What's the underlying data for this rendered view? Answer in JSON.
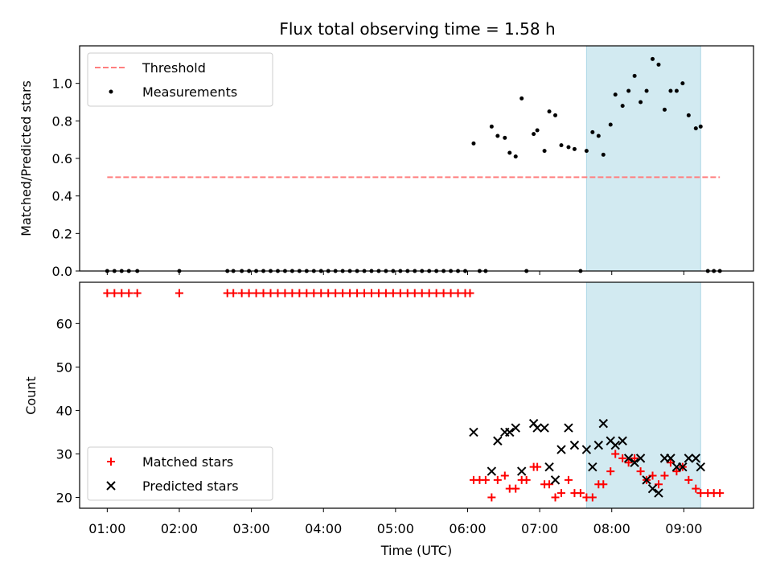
{
  "chart_data": [
    {
      "type": "scatter",
      "title": "Flux total observing time = 1.58 h",
      "ylabel": "Matched/Predicted stars",
      "xlabel": "",
      "xlim": [
        "00:37",
        "09:58"
      ],
      "ylim": [
        0,
        1.2
      ],
      "yticks": [
        "0.0",
        "0.2",
        "0.4",
        "0.6",
        "0.8",
        "1.0"
      ],
      "xticks": [
        "01:00",
        "02:00",
        "03:00",
        "04:00",
        "05:00",
        "06:00",
        "07:00",
        "08:00",
        "09:00"
      ],
      "grid": false,
      "legend_position": "upper left",
      "highlight_span": {
        "x_start": "07:39",
        "x_end": "09:14",
        "color": "#add8e6"
      },
      "series": [
        {
          "name": "Threshold",
          "style": "dashed-line",
          "color": "#ff7f7f",
          "points": [
            [
              "01:00",
              0.5
            ],
            [
              "09:30",
              0.5
            ]
          ]
        },
        {
          "name": "Measurements",
          "style": "dot",
          "color": "#000000",
          "points": [
            [
              "01:00",
              0
            ],
            [
              "01:06",
              0
            ],
            [
              "01:12",
              0
            ],
            [
              "01:18",
              0
            ],
            [
              "01:25",
              0
            ],
            [
              "02:00",
              0
            ],
            [
              "02:40",
              0
            ],
            [
              "02:45",
              0
            ],
            [
              "02:52",
              0
            ],
            [
              "02:58",
              0
            ],
            [
              "03:04",
              0
            ],
            [
              "03:10",
              0
            ],
            [
              "03:16",
              0
            ],
            [
              "03:22",
              0
            ],
            [
              "03:28",
              0
            ],
            [
              "03:34",
              0
            ],
            [
              "03:40",
              0
            ],
            [
              "03:46",
              0
            ],
            [
              "03:52",
              0
            ],
            [
              "03:58",
              0
            ],
            [
              "04:04",
              0
            ],
            [
              "04:10",
              0
            ],
            [
              "04:16",
              0
            ],
            [
              "04:22",
              0
            ],
            [
              "04:28",
              0
            ],
            [
              "04:34",
              0
            ],
            [
              "04:40",
              0
            ],
            [
              "04:46",
              0
            ],
            [
              "04:52",
              0
            ],
            [
              "04:58",
              0
            ],
            [
              "05:04",
              0
            ],
            [
              "05:10",
              0
            ],
            [
              "05:16",
              0
            ],
            [
              "05:22",
              0
            ],
            [
              "05:28",
              0
            ],
            [
              "05:34",
              0
            ],
            [
              "05:40",
              0
            ],
            [
              "05:46",
              0
            ],
            [
              "05:52",
              0
            ],
            [
              "05:58",
              0
            ],
            [
              "06:05",
              0.68
            ],
            [
              "06:10",
              0
            ],
            [
              "06:15",
              0
            ],
            [
              "06:20",
              0.77
            ],
            [
              "06:25",
              0.72
            ],
            [
              "06:31",
              0.71
            ],
            [
              "06:35",
              0.63
            ],
            [
              "06:40",
              0.61
            ],
            [
              "06:45",
              0.92
            ],
            [
              "06:49",
              0
            ],
            [
              "06:55",
              0.73
            ],
            [
              "06:58",
              0.75
            ],
            [
              "07:04",
              0.64
            ],
            [
              "07:08",
              0.85
            ],
            [
              "07:13",
              0.83
            ],
            [
              "07:18",
              0.67
            ],
            [
              "07:24",
              0.66
            ],
            [
              "07:29",
              0.65
            ],
            [
              "07:34",
              0
            ],
            [
              "07:39",
              0.64
            ],
            [
              "07:44",
              0.74
            ],
            [
              "07:49",
              0.72
            ],
            [
              "07:53",
              0.62
            ],
            [
              "07:59",
              0.78
            ],
            [
              "08:03",
              0.94
            ],
            [
              "08:09",
              0.88
            ],
            [
              "08:14",
              0.96
            ],
            [
              "08:19",
              1.04
            ],
            [
              "08:24",
              0.9
            ],
            [
              "08:29",
              0.96
            ],
            [
              "08:34",
              1.13
            ],
            [
              "08:39",
              1.1
            ],
            [
              "08:44",
              0.86
            ],
            [
              "08:49",
              0.96
            ],
            [
              "08:54",
              0.96
            ],
            [
              "08:59",
              1.0
            ],
            [
              "09:04",
              0.83
            ],
            [
              "09:10",
              0.76
            ],
            [
              "09:14",
              0.77
            ],
            [
              "09:20",
              0
            ],
            [
              "09:25",
              0
            ],
            [
              "09:30",
              0
            ]
          ]
        }
      ]
    },
    {
      "type": "scatter",
      "title": "",
      "ylabel": "Count",
      "xlabel": "Time (UTC)",
      "xlim": [
        "00:37",
        "09:58"
      ],
      "ylim": [
        17.5,
        69.5
      ],
      "yticks": [
        "20",
        "30",
        "40",
        "50",
        "60"
      ],
      "xticks": [
        "01:00",
        "02:00",
        "03:00",
        "04:00",
        "05:00",
        "06:00",
        "07:00",
        "08:00",
        "09:00"
      ],
      "grid": false,
      "legend_position": "lower left",
      "highlight_span": {
        "x_start": "07:39",
        "x_end": "09:14",
        "color": "#add8e6"
      },
      "series": [
        {
          "name": "Matched stars",
          "style": "plus",
          "color": "#ff0000",
          "points": [
            [
              "01:00",
              67
            ],
            [
              "01:06",
              67
            ],
            [
              "01:12",
              67
            ],
            [
              "01:18",
              67
            ],
            [
              "01:25",
              67
            ],
            [
              "02:00",
              67
            ],
            [
              "02:40",
              67
            ],
            [
              "02:45",
              67
            ],
            [
              "02:52",
              67
            ],
            [
              "02:58",
              67
            ],
            [
              "03:04",
              67
            ],
            [
              "03:10",
              67
            ],
            [
              "03:16",
              67
            ],
            [
              "03:22",
              67
            ],
            [
              "03:28",
              67
            ],
            [
              "03:34",
              67
            ],
            [
              "03:40",
              67
            ],
            [
              "03:46",
              67
            ],
            [
              "03:52",
              67
            ],
            [
              "03:58",
              67
            ],
            [
              "04:04",
              67
            ],
            [
              "04:10",
              67
            ],
            [
              "04:16",
              67
            ],
            [
              "04:22",
              67
            ],
            [
              "04:28",
              67
            ],
            [
              "04:34",
              67
            ],
            [
              "04:40",
              67
            ],
            [
              "04:46",
              67
            ],
            [
              "04:52",
              67
            ],
            [
              "04:58",
              67
            ],
            [
              "05:04",
              67
            ],
            [
              "05:10",
              67
            ],
            [
              "05:16",
              67
            ],
            [
              "05:22",
              67
            ],
            [
              "05:28",
              67
            ],
            [
              "05:34",
              67
            ],
            [
              "05:40",
              67
            ],
            [
              "05:46",
              67
            ],
            [
              "05:52",
              67
            ],
            [
              "05:58",
              67
            ],
            [
              "06:02",
              67
            ],
            [
              "06:05",
              24
            ],
            [
              "06:10",
              24
            ],
            [
              "06:15",
              24
            ],
            [
              "06:20",
              20
            ],
            [
              "06:25",
              24
            ],
            [
              "06:31",
              25
            ],
            [
              "06:35",
              22
            ],
            [
              "06:40",
              22
            ],
            [
              "06:45",
              24
            ],
            [
              "06:49",
              24
            ],
            [
              "06:55",
              27
            ],
            [
              "06:58",
              27
            ],
            [
              "07:04",
              23
            ],
            [
              "07:08",
              23
            ],
            [
              "07:13",
              20
            ],
            [
              "07:18",
              21
            ],
            [
              "07:24",
              24
            ],
            [
              "07:29",
              21
            ],
            [
              "07:34",
              21
            ],
            [
              "07:39",
              20
            ],
            [
              "07:44",
              20
            ],
            [
              "07:49",
              23
            ],
            [
              "07:53",
              23
            ],
            [
              "07:59",
              26
            ],
            [
              "08:03",
              30
            ],
            [
              "08:09",
              29
            ],
            [
              "08:14",
              28
            ],
            [
              "08:19",
              29
            ],
            [
              "08:24",
              26
            ],
            [
              "08:29",
              24
            ],
            [
              "08:34",
              25
            ],
            [
              "08:39",
              23
            ],
            [
              "08:44",
              25
            ],
            [
              "08:49",
              28
            ],
            [
              "08:54",
              26
            ],
            [
              "08:59",
              27
            ],
            [
              "09:04",
              24
            ],
            [
              "09:10",
              22
            ],
            [
              "09:14",
              21
            ],
            [
              "09:20",
              21
            ],
            [
              "09:25",
              21
            ],
            [
              "09:30",
              21
            ]
          ]
        },
        {
          "name": "Predicted stars",
          "style": "x",
          "color": "#000000",
          "points": [
            [
              "06:05",
              35
            ],
            [
              "06:20",
              26
            ],
            [
              "06:25",
              33
            ],
            [
              "06:31",
              35
            ],
            [
              "06:35",
              35
            ],
            [
              "06:40",
              36
            ],
            [
              "06:45",
              26
            ],
            [
              "06:55",
              37
            ],
            [
              "06:58",
              36
            ],
            [
              "07:04",
              36
            ],
            [
              "07:08",
              27
            ],
            [
              "07:13",
              24
            ],
            [
              "07:18",
              31
            ],
            [
              "07:24",
              36
            ],
            [
              "07:29",
              32
            ],
            [
              "07:39",
              31
            ],
            [
              "07:44",
              27
            ],
            [
              "07:49",
              32
            ],
            [
              "07:53",
              37
            ],
            [
              "07:59",
              33
            ],
            [
              "08:03",
              32
            ],
            [
              "08:09",
              33
            ],
            [
              "08:14",
              29
            ],
            [
              "08:19",
              28
            ],
            [
              "08:24",
              29
            ],
            [
              "08:29",
              24
            ],
            [
              "08:34",
              22
            ],
            [
              "08:39",
              21
            ],
            [
              "08:44",
              29
            ],
            [
              "08:49",
              29
            ],
            [
              "08:54",
              27
            ],
            [
              "08:59",
              27
            ],
            [
              "09:04",
              29
            ],
            [
              "09:10",
              29
            ],
            [
              "09:14",
              27
            ]
          ]
        }
      ]
    }
  ]
}
